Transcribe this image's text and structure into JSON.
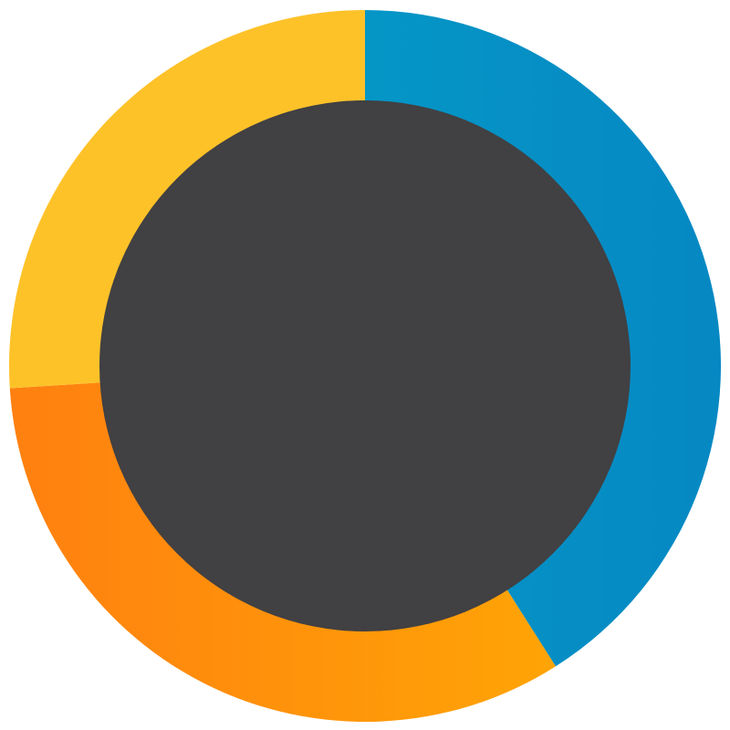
{
  "chart_data": {
    "type": "pie",
    "variant": "donut",
    "title": "",
    "slices": [
      {
        "value": 41,
        "color": "#0596c6",
        "color_end": "#0688c3"
      },
      {
        "value": 33,
        "color": "#ff8010",
        "color_end": "#ffa406"
      },
      {
        "value": 26,
        "color": "#fec229",
        "color_end": "#fec229"
      }
    ],
    "start_angle_deg": 0,
    "direction": "clockwise",
    "center_color": "#414042",
    "legend": "none"
  }
}
